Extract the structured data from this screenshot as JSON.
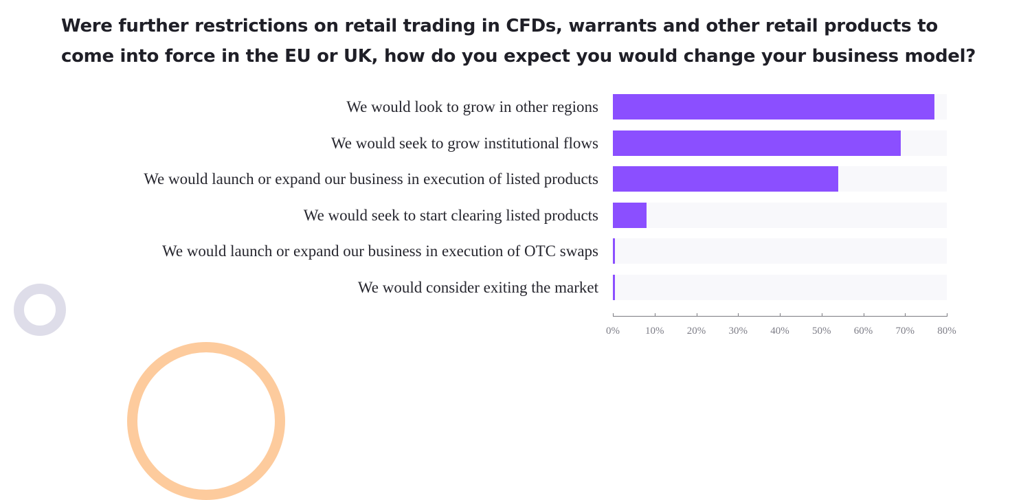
{
  "title": "Were further restrictions on retail trading in CFDs, warrants and other retail products to come into force in the EU or UK, how do you expect you would change your business model?",
  "colors": {
    "bar": "#8b4fff",
    "track": "#f8f8fb",
    "ring": "#dedde9",
    "arc": "#fdcb9d"
  },
  "chart_data": {
    "type": "bar",
    "orientation": "horizontal",
    "title": "Were further restrictions on retail trading in CFDs, warrants and other retail products to come into force in the EU or UK, how do you expect you would change your business model?",
    "categories": [
      "We would look to grow in other regions",
      "We would seek to grow institutional flows",
      "We would launch or expand our business in execution of listed products",
      "We would seek to start clearing listed products",
      "We would launch or expand our business in execution of OTC swaps",
      "We would consider exiting the market"
    ],
    "values": [
      77,
      69,
      54,
      8,
      0.5,
      0.5
    ],
    "xlabel": "",
    "ylabel": "",
    "xlim": [
      0,
      80
    ],
    "x_ticks": [
      "0%",
      "10%",
      "20%",
      "30%",
      "40%",
      "50%",
      "60%",
      "70%",
      "80%"
    ],
    "grid": false,
    "legend": null
  }
}
